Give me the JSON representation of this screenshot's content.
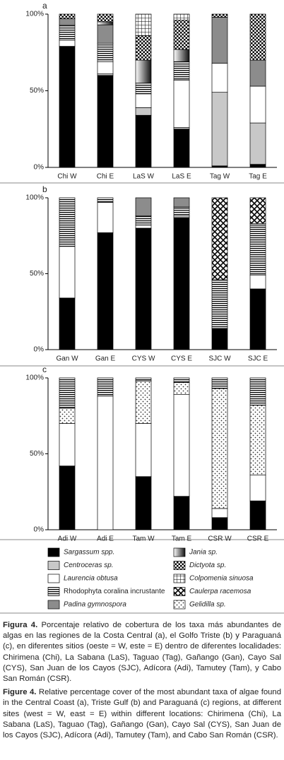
{
  "chart_data": [
    {
      "type": "stacked-bar",
      "label": "a",
      "categories": [
        "Chi W",
        "Chi E",
        "LaS W",
        "LaS E",
        "Tag W",
        "Tag E"
      ],
      "ylim": [
        0,
        100
      ],
      "yticks": [
        {
          "value": 0,
          "label": "0%"
        },
        {
          "value": 50,
          "label": "50%"
        },
        {
          "value": 100,
          "label": "100%"
        }
      ],
      "series": [
        {
          "fill": "black",
          "values": [
            79,
            60,
            34,
            25,
            1,
            2
          ]
        },
        {
          "fill": "#c8c8c8",
          "values": [
            0,
            1,
            5,
            1,
            48,
            27
          ]
        },
        {
          "fill": "white",
          "values": [
            4,
            8,
            9,
            31,
            19,
            24
          ]
        },
        {
          "fill": "stripes",
          "values": [
            10,
            12,
            7,
            12,
            0,
            0
          ]
        },
        {
          "fill": "#8c8c8c",
          "values": [
            4,
            12,
            0,
            0,
            30,
            17
          ]
        },
        {
          "fill": "gradient",
          "values": [
            0,
            2,
            15,
            8,
            0,
            0
          ]
        },
        {
          "fill": "checker",
          "values": [
            3,
            5,
            16,
            19,
            2,
            30
          ]
        },
        {
          "fill": "grid",
          "values": [
            0,
            0,
            14,
            4,
            0,
            0
          ]
        }
      ]
    },
    {
      "type": "stacked-bar",
      "label": "b",
      "categories": [
        "Gan W",
        "Gan E",
        "CYS W",
        "CYS E",
        "SJC W",
        "SJC E"
      ],
      "ylim": [
        0,
        100
      ],
      "yticks": [
        {
          "value": 0,
          "label": "0%"
        },
        {
          "value": 50,
          "label": "50%"
        },
        {
          "value": 100,
          "label": "100%"
        }
      ],
      "series": [
        {
          "fill": "black",
          "values": [
            34,
            77,
            80,
            87,
            14,
            40
          ]
        },
        {
          "fill": "white",
          "values": [
            34,
            20,
            2,
            1,
            1,
            9
          ]
        },
        {
          "fill": "stripes",
          "values": [
            32,
            3,
            6,
            6,
            31,
            34
          ]
        },
        {
          "fill": "#8c8c8c",
          "values": [
            0,
            0,
            12,
            6,
            0,
            0
          ]
        },
        {
          "fill": "diamond",
          "values": [
            0,
            0,
            0,
            0,
            54,
            17
          ]
        }
      ]
    },
    {
      "type": "stacked-bar",
      "label": "c",
      "categories": [
        "Adi W",
        "Adi E",
        "Tam W",
        "Tam E",
        "CSR W",
        "CSR E"
      ],
      "ylim": [
        0,
        100
      ],
      "yticks": [
        {
          "value": 0,
          "label": "0%"
        },
        {
          "value": 50,
          "label": "50%"
        },
        {
          "value": 100,
          "label": "100%"
        }
      ],
      "series": [
        {
          "fill": "black",
          "values": [
            42,
            0,
            35,
            22,
            8,
            19
          ]
        },
        {
          "fill": "white",
          "values": [
            28,
            88,
            35,
            67,
            6,
            17
          ]
        },
        {
          "fill": "dots",
          "values": [
            10,
            0,
            28,
            8,
            79,
            46
          ]
        },
        {
          "fill": "stripes",
          "values": [
            20,
            12,
            2,
            3,
            7,
            18
          ]
        }
      ]
    }
  ],
  "legend": {
    "items": [
      {
        "name": "Sargassum spp.",
        "fill": "black",
        "italic": true
      },
      {
        "name": "Centroceras sp.",
        "fill": "#c8c8c8",
        "italic": true
      },
      {
        "name": "Laurencia obtusa",
        "fill": "white",
        "italic": true
      },
      {
        "name": "Rhodophyta coralina incrustante",
        "fill": "stripes",
        "italic": false
      },
      {
        "name": "Padina gymnospora",
        "fill": "#8c8c8c",
        "italic": true
      },
      {
        "name": "Jania sp.",
        "fill": "gradient",
        "italic": true
      },
      {
        "name": "Dictyota sp.",
        "fill": "checker",
        "italic": true
      },
      {
        "name": "Colpomenia sinuosa",
        "fill": "grid",
        "italic": true
      },
      {
        "name": "Caulerpa racemosa",
        "fill": "diamond",
        "italic": true
      },
      {
        "name": "Gelidilla sp.",
        "fill": "dots",
        "italic": true
      }
    ]
  },
  "caption": [
    {
      "label": "Figura 4.",
      "text": "Porcentaje relativo de cobertura de los taxa más abundantes de algas en las regiones de la Costa Central (a), el Golfo Triste (b) y Paraguaná (c), en diferentes sitios (oeste = W, este = E) dentro de diferentes localidades: Chirimena (Chi), La Sabana (LaS), Taguao (Tag), Gañango (Gan), Cayo Sal (CYS), San Juan de los Cayos (SJC), Adícora (Adi), Tamutey (Tam), y Cabo San Román (CSR)."
    },
    {
      "label": "Figure 4.",
      "text": "Relative percentage cover of the most abundant taxa of algae found in the Central Coast (a), Triste Gulf (b) and Paraguaná (c) regions, at different sites (west = W, east = E) within different locations: Chirimena (Chi), La Sabana (LaS), Taguao (Tag), Gañango (Gan), Cayo Sal (CYS), San Juan de los Cayos (SJC), Adícora (Adi), Tamutey (Tam), and Cabo San Román (CSR)."
    }
  ]
}
